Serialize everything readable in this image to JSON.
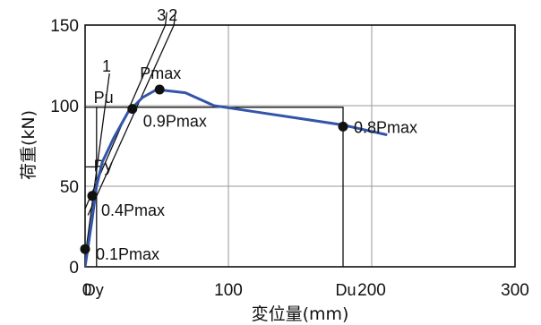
{
  "chart_data": {
    "type": "line",
    "xlabel": "変位量(mm)",
    "ylabel": "荷重(kN)",
    "xlim": [
      0,
      300
    ],
    "ylim": [
      0,
      150
    ],
    "x_ticks": [
      "0",
      "100",
      "200",
      "300"
    ],
    "y_ticks": [
      "0",
      "50",
      "100",
      "150"
    ],
    "grid": true,
    "series": [
      {
        "color": "#3355a8",
        "x": [
          0,
          2,
          5,
          8,
          12,
          20,
          30,
          40,
          50,
          70,
          90,
          120,
          150,
          180,
          200,
          210
        ],
        "y": [
          0,
          12,
          30,
          50,
          65,
          80,
          96,
          105,
          110,
          108,
          100,
          96,
          92,
          88,
          84,
          82
        ]
      }
    ],
    "points": [
      {
        "label": "0.1Pmax",
        "x": 0,
        "y": 11
      },
      {
        "label": "0.4Pmax",
        "x": 5,
        "y": 44
      },
      {
        "label": "0.9Pmax",
        "x": 33,
        "y": 98
      },
      {
        "label": "Pmax",
        "x": 52,
        "y": 110
      },
      {
        "label": "0.8Pmax",
        "x": 180,
        "y": 87
      }
    ],
    "line_labels": [
      "1",
      "2",
      "3"
    ],
    "annotations": [
      "Pu",
      "Py",
      "Dy",
      "Du"
    ],
    "guide_lines": {
      "pu": 99,
      "py": 62,
      "dy": 8,
      "du": 180
    }
  }
}
